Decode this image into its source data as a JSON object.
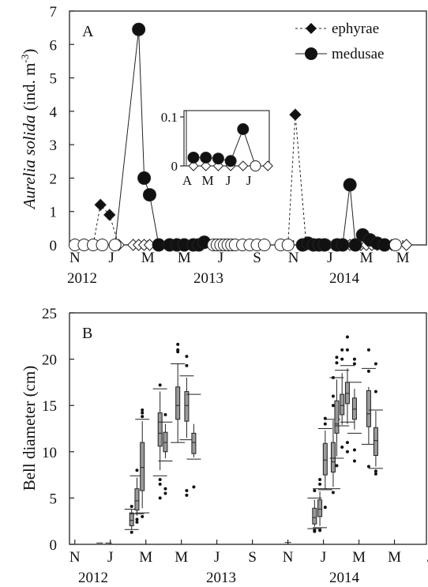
{
  "panel_a": {
    "label": "A",
    "ylabel_italic": "Aurelia  solida",
    "ylabel_unit": " (ind. m",
    "ylabel_sup": "-3",
    "ylabel_close": ")",
    "legend": [
      {
        "name": "ephyrae"
      },
      {
        "name": "medusae"
      }
    ]
  },
  "panel_b": {
    "label": "B",
    "ylabel": "Bell diameter (cm)"
  },
  "x_ticks": [
    "N",
    "J",
    "M",
    "M",
    "J",
    "S",
    "N",
    "J",
    "M",
    "M",
    "J"
  ],
  "x_years": [
    {
      "label": "2012",
      "month_index": 0
    },
    {
      "label": "2013",
      "month_index": 12
    },
    {
      "label": "2014",
      "month_index": 24
    }
  ],
  "chart_data": [
    {
      "type": "line",
      "panel": "A",
      "ylabel": "Aurelia solida (ind. m-3)",
      "ylim": [
        0,
        7
      ],
      "y_ticks": [
        0,
        1,
        2,
        3,
        4,
        5,
        6,
        7
      ],
      "xlim_months": [
        -0.3,
        19.3
      ],
      "x_unit": "months since Nov 2012",
      "x_tick_labels": [
        "N",
        "J",
        "M",
        "M",
        "J",
        "S",
        "N",
        "J",
        "M",
        "M",
        "J"
      ],
      "legend_position": "top-right",
      "series": [
        {
          "name": "ephyrae",
          "marker": "diamond",
          "line": "dashed",
          "points": [
            {
              "x": 0.0,
              "y": 0,
              "filled": false
            },
            {
              "x": 0.5,
              "y": 0,
              "filled": false
            },
            {
              "x": 1.0,
              "y": 0,
              "filled": false
            },
            {
              "x": 1.4,
              "y": 1.2,
              "filled": true
            },
            {
              "x": 1.9,
              "y": 0.9,
              "filled": true
            },
            {
              "x": 2.4,
              "y": 0,
              "filled": false
            },
            {
              "x": 3.2,
              "y": 0,
              "filled": false
            },
            {
              "x": 3.5,
              "y": 0,
              "filled": false
            },
            {
              "x": 3.8,
              "y": 0,
              "filled": false
            },
            {
              "x": 4.1,
              "y": 0,
              "filled": false
            },
            {
              "x": 7.6,
              "y": 0,
              "filled": false
            },
            {
              "x": 7.8,
              "y": 0,
              "filled": false
            },
            {
              "x": 8.0,
              "y": 0,
              "filled": false
            },
            {
              "x": 8.2,
              "y": 0,
              "filled": false
            },
            {
              "x": 8.4,
              "y": 0,
              "filled": false
            },
            {
              "x": 8.6,
              "y": 0,
              "filled": false
            },
            {
              "x": 8.8,
              "y": 0,
              "filled": false
            },
            {
              "x": 9.2,
              "y": 0,
              "filled": false
            },
            {
              "x": 9.6,
              "y": 0,
              "filled": false
            },
            {
              "x": 10.0,
              "y": 0,
              "filled": false
            },
            {
              "x": 10.4,
              "y": 0,
              "filled": false
            },
            {
              "x": 11.3,
              "y": 0,
              "filled": false
            },
            {
              "x": 11.7,
              "y": 0,
              "filled": false
            },
            {
              "x": 12.1,
              "y": 3.9,
              "filled": true
            },
            {
              "x": 12.7,
              "y": 0,
              "filled": false
            },
            {
              "x": 13.0,
              "y": 0,
              "filled": false
            },
            {
              "x": 13.3,
              "y": 0,
              "filled": false
            },
            {
              "x": 13.6,
              "y": 0,
              "filled": false
            },
            {
              "x": 13.9,
              "y": 0,
              "filled": false
            },
            {
              "x": 14.2,
              "y": 0,
              "filled": false
            },
            {
              "x": 14.5,
              "y": 0,
              "filled": false
            },
            {
              "x": 14.8,
              "y": 0,
              "filled": false
            },
            {
              "x": 15.1,
              "y": 0,
              "filled": false
            },
            {
              "x": 15.4,
              "y": 0,
              "filled": false
            },
            {
              "x": 15.7,
              "y": 0,
              "filled": false
            },
            {
              "x": 16.0,
              "y": 0,
              "filled": false
            },
            {
              "x": 16.3,
              "y": 0,
              "filled": false
            },
            {
              "x": 16.6,
              "y": 0,
              "filled": false
            },
            {
              "x": 17.0,
              "y": 0,
              "filled": false
            },
            {
              "x": 17.4,
              "y": 0,
              "filled": false
            },
            {
              "x": 18.2,
              "y": 0,
              "filled": false
            }
          ]
        },
        {
          "name": "medusae",
          "marker": "circle",
          "line": "solid",
          "points": [
            {
              "x": 0.0,
              "y": 0,
              "filled": false
            },
            {
              "x": 0.5,
              "y": 0,
              "filled": false
            },
            {
              "x": 1.0,
              "y": 0,
              "filled": false
            },
            {
              "x": 1.5,
              "y": 0,
              "filled": false
            },
            {
              "x": 2.2,
              "y": 0,
              "filled": false
            },
            {
              "x": 3.5,
              "y": 6.45,
              "filled": true
            },
            {
              "x": 3.8,
              "y": 2.0,
              "filled": true
            },
            {
              "x": 4.1,
              "y": 1.5,
              "filled": true
            },
            {
              "x": 4.6,
              "y": 0,
              "filled": true
            },
            {
              "x": 5.2,
              "y": 0,
              "filled": true
            },
            {
              "x": 5.6,
              "y": 0,
              "filled": true
            },
            {
              "x": 6.0,
              "y": 0,
              "filled": true
            },
            {
              "x": 6.5,
              "y": 0,
              "filled": true
            },
            {
              "x": 6.8,
              "y": 0,
              "filled": true
            },
            {
              "x": 7.1,
              "y": 0.08,
              "filled": true
            },
            {
              "x": 7.6,
              "y": 0,
              "filled": false
            },
            {
              "x": 7.8,
              "y": 0,
              "filled": false
            },
            {
              "x": 8.0,
              "y": 0,
              "filled": false
            },
            {
              "x": 8.2,
              "y": 0,
              "filled": false
            },
            {
              "x": 8.4,
              "y": 0,
              "filled": false
            },
            {
              "x": 8.6,
              "y": 0,
              "filled": false
            },
            {
              "x": 8.8,
              "y": 0,
              "filled": false
            },
            {
              "x": 9.2,
              "y": 0,
              "filled": false
            },
            {
              "x": 9.6,
              "y": 0,
              "filled": false
            },
            {
              "x": 10.0,
              "y": 0,
              "filled": false
            },
            {
              "x": 10.4,
              "y": 0,
              "filled": false
            },
            {
              "x": 11.3,
              "y": 0,
              "filled": false
            },
            {
              "x": 11.7,
              "y": 0,
              "filled": false
            },
            {
              "x": 12.5,
              "y": 0,
              "filled": true
            },
            {
              "x": 12.8,
              "y": 0.05,
              "filled": true
            },
            {
              "x": 13.1,
              "y": 0,
              "filled": true
            },
            {
              "x": 13.4,
              "y": 0,
              "filled": true
            },
            {
              "x": 13.7,
              "y": 0,
              "filled": true
            },
            {
              "x": 14.4,
              "y": 0,
              "filled": true
            },
            {
              "x": 14.7,
              "y": 0,
              "filled": true
            },
            {
              "x": 15.1,
              "y": 1.8,
              "filled": true
            },
            {
              "x": 15.4,
              "y": 0,
              "filled": true
            },
            {
              "x": 15.8,
              "y": 0.3,
              "filled": true
            },
            {
              "x": 16.2,
              "y": 0.15,
              "filled": true
            },
            {
              "x": 16.6,
              "y": 0.05,
              "filled": true
            },
            {
              "x": 17.0,
              "y": 0,
              "filled": true
            },
            {
              "x": 17.6,
              "y": 0,
              "filled": false
            }
          ]
        }
      ],
      "inset": {
        "x_tick_labels": [
          "A",
          "M",
          "J",
          "J"
        ],
        "y_tick_labels": [
          "0",
          "0.1"
        ],
        "ylim": [
          0,
          0.1
        ],
        "ephyrae": [
          0,
          0,
          0,
          0,
          0,
          0,
          0
        ],
        "medusae": [
          0.017,
          0.017,
          0.015,
          0.01,
          0.075,
          0
        ]
      }
    },
    {
      "type": "box",
      "panel": "B",
      "ylabel": "Bell diameter (cm)",
      "ylim": [
        0,
        25
      ],
      "y_ticks": [
        0,
        5,
        10,
        15,
        20,
        25
      ],
      "xlim_months": [
        -0.3,
        19.8
      ],
      "x_unit": "months since Nov 2012",
      "x_tick_labels": [
        "N",
        "J",
        "M",
        "M",
        "J",
        "S",
        "N",
        "J",
        "M",
        "M",
        "J"
      ],
      "zero_marks": [
        {
          "x": 1.4,
          "y": 0.15
        },
        {
          "x": 1.9,
          "y": 0.15
        },
        {
          "x": 12.0,
          "y": 0.2
        }
      ],
      "boxes": [
        {
          "x": 3.2,
          "q1": 2.0,
          "median": 2.6,
          "q3": 3.4,
          "wlo": 1.6,
          "whi": 3.8,
          "p10": 1.6,
          "p90": 3.8,
          "out": [
            1.3,
            4.1
          ]
        },
        {
          "x": 3.5,
          "q1": 3.7,
          "median": 4.7,
          "q3": 6.0,
          "wlo": 3.1,
          "whi": 7.2,
          "p10": 3.3,
          "p90": 7.4,
          "out": [
            2.4,
            2.7,
            8.0
          ]
        },
        {
          "x": 3.8,
          "q1": 5.8,
          "median": 8.3,
          "q3": 11.0,
          "wlo": 3.9,
          "whi": 13.3,
          "p10": 3.4,
          "p90": 13.5,
          "out": [
            13.8,
            14.2,
            14.5,
            3.0
          ]
        },
        {
          "x": 4.8,
          "q1": 10.6,
          "median": 12.0,
          "q3": 14.2,
          "wlo": 8.0,
          "whi": 16.5,
          "p10": 7.4,
          "p90": 16.8,
          "out": [
            17.2,
            6.5,
            7.0,
            5.0
          ]
        },
        {
          "x": 5.1,
          "q1": 10.0,
          "median": 11.0,
          "q3": 12.1,
          "wlo": 9.3,
          "whi": 13.0,
          "p10": 9.0,
          "p90": 13.2,
          "out": [
            14.0,
            6.0,
            5.5
          ]
        },
        {
          "x": 5.8,
          "q1": 13.5,
          "median": 15.0,
          "q3": 17.0,
          "wlo": 11.0,
          "whi": 19.5,
          "p10": 11.0,
          "p90": 19.5,
          "out": [
            20.8,
            21.6,
            21.0
          ]
        },
        {
          "x": 6.3,
          "q1": 13.3,
          "median": 15.0,
          "q3": 16.5,
          "wlo": 11.5,
          "whi": 18.0,
          "p10": 11.3,
          "p90": 18.2,
          "out": [
            19.3,
            20.3,
            5.8,
            5.3
          ]
        },
        {
          "x": 6.7,
          "q1": 9.8,
          "median": 11.0,
          "q3": 12.0,
          "wlo": 9.4,
          "whi": 13.0,
          "p10": 9.2,
          "p90": 16.2,
          "out": [
            6.2
          ]
        },
        {
          "x": 13.5,
          "q1": 2.2,
          "median": 2.9,
          "q3": 3.9,
          "wlo": 1.9,
          "whi": 4.8,
          "p10": 1.7,
          "p90": 5.0,
          "out": [
            1.5,
            5.8,
            1.4
          ]
        },
        {
          "x": 13.8,
          "q1": 3.0,
          "median": 3.8,
          "q3": 4.8,
          "wlo": 2.0,
          "whi": 5.7,
          "p10": 1.8,
          "p90": 6.0,
          "out": [
            1.5,
            6.5,
            7.0
          ]
        },
        {
          "x": 14.1,
          "q1": 7.5,
          "median": 9.1,
          "q3": 10.9,
          "wlo": 6.0,
          "whi": 12.3,
          "p10": 5.9,
          "p90": 12.5,
          "out": [
            13.0,
            13.6,
            4.0
          ]
        },
        {
          "x": 14.55,
          "q1": 7.8,
          "median": 8.9,
          "q3": 11.0,
          "wlo": 6.2,
          "whi": 13.4,
          "p10": 6.0,
          "p90": 13.5,
          "out": [
            15.0,
            16.0,
            18.0,
            5.6
          ]
        },
        {
          "x": 14.75,
          "q1": 12.0,
          "median": 13.0,
          "q3": 15.5,
          "wlo": 9.5,
          "whi": 17.8,
          "p10": 9.3,
          "p90": 18.0,
          "out": [
            19.6,
            20.2,
            8.5
          ]
        },
        {
          "x": 15.05,
          "q1": 14.0,
          "median": 15.0,
          "q3": 16.2,
          "wlo": 12.9,
          "whi": 18.5,
          "p10": 12.8,
          "p90": 18.8,
          "out": [
            20.0,
            21.0,
            10.5
          ]
        },
        {
          "x": 15.35,
          "q1": 15.2,
          "median": 16.3,
          "q3": 17.5,
          "wlo": 13.0,
          "whi": 19.0,
          "p10": 13.2,
          "p90": 19.3,
          "out": [
            21.0,
            22.4,
            10.0,
            11.0
          ]
        },
        {
          "x": 15.75,
          "q1": 13.5,
          "median": 14.6,
          "q3": 15.8,
          "wlo": 12.4,
          "whi": 16.8,
          "p10": 12.0,
          "p90": 17.5,
          "out": [
            19.5,
            20.0,
            9.0,
            10.2
          ]
        },
        {
          "x": 16.55,
          "q1": 12.7,
          "median": 14.1,
          "q3": 16.6,
          "wlo": 10.8,
          "whi": 17.0,
          "p10": 10.8,
          "p90": 19.0,
          "out": [
            21.0,
            18.7,
            8.4
          ]
        },
        {
          "x": 16.95,
          "q1": 9.6,
          "median": 11.2,
          "q3": 12.6,
          "wlo": 8.4,
          "whi": 14.4,
          "p10": 8.2,
          "p90": 14.5,
          "out": [
            19.5,
            16.5,
            7.6,
            7.9
          ]
        }
      ]
    }
  ]
}
